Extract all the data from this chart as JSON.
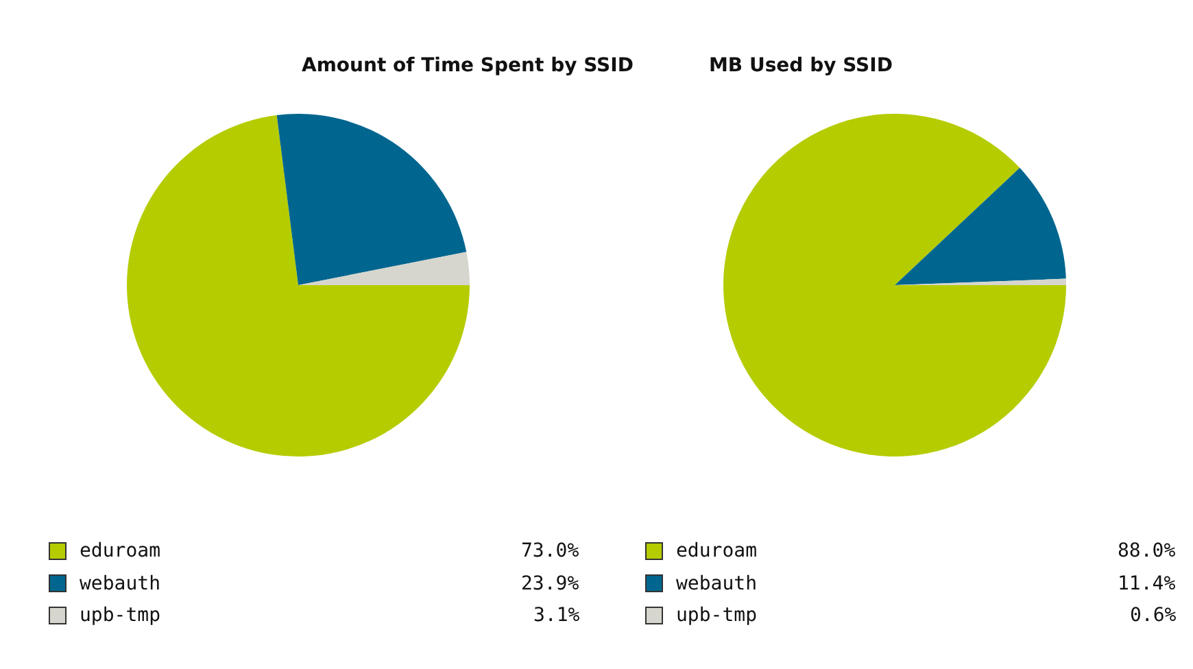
{
  "chart_data": [
    {
      "type": "pie",
      "title": "Amount of Time Spent by SSID",
      "categories": [
        "eduroam",
        "webauth",
        "upb-tmp"
      ],
      "values": [
        73.0,
        23.9,
        3.1
      ],
      "colors": [
        "#b5cc00",
        "#00668f",
        "#d6d6ce"
      ],
      "value_labels": [
        "73.0%",
        "23.9%",
        "3.1%"
      ],
      "legend": "bottom"
    },
    {
      "type": "pie",
      "title": "MB Used by SSID",
      "categories": [
        "eduroam",
        "webauth",
        "upb-tmp"
      ],
      "values": [
        88.0,
        11.4,
        0.6
      ],
      "colors": [
        "#b5cc00",
        "#00668f",
        "#d6d6ce"
      ],
      "value_labels": [
        "88.0%",
        "11.4%",
        "0.6%"
      ],
      "legend": "bottom"
    }
  ]
}
